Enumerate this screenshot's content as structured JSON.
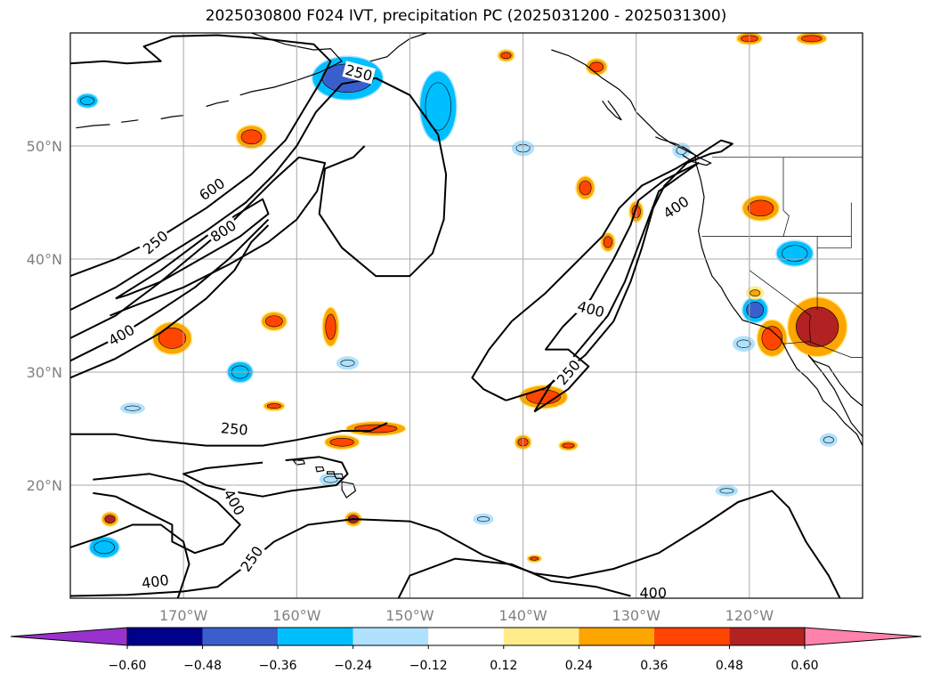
{
  "chart_data": {
    "type": "heatmap",
    "title": "2025030800 F024 IVT, precipitation PC (2025031200 - 2025031300)",
    "map": {
      "lon_range": [
        -180,
        -110
      ],
      "lat_range": [
        10,
        60
      ],
      "lat_ticks": [
        {
          "value": 50,
          "label": "50°N"
        },
        {
          "value": 40,
          "label": "40°N"
        },
        {
          "value": 30,
          "label": "30°N"
        },
        {
          "value": 20,
          "label": "20°N"
        }
      ],
      "lon_ticks": [
        {
          "value": -170,
          "label": "170°W"
        },
        {
          "value": -160,
          "label": "160°W"
        },
        {
          "value": -150,
          "label": "150°W"
        },
        {
          "value": -140,
          "label": "140°W"
        },
        {
          "value": -130,
          "label": "130°W"
        },
        {
          "value": -120,
          "label": "120°W"
        }
      ],
      "grid": true
    },
    "ivt_contours": {
      "levels": [
        250,
        400,
        600,
        800
      ],
      "labels": [
        {
          "text": "250",
          "lon": -172.5,
          "lat": 41.5,
          "rotate": -40
        },
        {
          "text": "400",
          "lon": -175.5,
          "lat": 33.3,
          "rotate": -30
        },
        {
          "text": "600",
          "lon": -167.5,
          "lat": 46.2,
          "rotate": -35
        },
        {
          "text": "800",
          "lon": -166.5,
          "lat": 42.5,
          "rotate": -33
        },
        {
          "text": "250",
          "lon": -154.5,
          "lat": 56.5,
          "rotate": 15
        },
        {
          "text": "250",
          "lon": -165.5,
          "lat": 25.0,
          "rotate": 5
        },
        {
          "text": "400",
          "lon": -165.5,
          "lat": 18.5,
          "rotate": 60
        },
        {
          "text": "250",
          "lon": -164.0,
          "lat": 13.5,
          "rotate": -55
        },
        {
          "text": "400",
          "lon": -172.5,
          "lat": 11.5,
          "rotate": -8
        },
        {
          "text": "400",
          "lon": -126.5,
          "lat": 44.6,
          "rotate": -35
        },
        {
          "text": "400",
          "lon": -134.0,
          "lat": 35.6,
          "rotate": 15
        },
        {
          "text": "250",
          "lon": -136.0,
          "lat": 30.0,
          "rotate": -50
        },
        {
          "text": "400",
          "lon": -128.5,
          "lat": 10.5,
          "rotate": 0
        }
      ]
    },
    "colorbar": {
      "boundaries": [
        "-0.60",
        "-0.48",
        "-0.36",
        "-0.24",
        "-0.12",
        "0.12",
        "0.24",
        "0.36",
        "0.48",
        "0.60"
      ],
      "colors": [
        "#9932CC",
        "#00008B",
        "#3A5FCD",
        "#00BFFF",
        "#B0E2FF",
        "#FFFFFF",
        "#FFEC8B",
        "#FFA500",
        "#FF4500",
        "#B22222",
        "#FF82AB"
      ],
      "extend": "both"
    },
    "precip_pc_regions": [
      {
        "lon": -155.5,
        "lat": 56.0,
        "rx": 3.0,
        "ry": 1.8,
        "value": -0.42
      },
      {
        "lon": -147.5,
        "lat": 53.5,
        "rx": 1.5,
        "ry": 3.0,
        "value": -0.36
      },
      {
        "lon": -164.0,
        "lat": 50.8,
        "rx": 1.2,
        "ry": 0.9,
        "value": 0.4
      },
      {
        "lon": -171.0,
        "lat": 33.0,
        "rx": 1.6,
        "ry": 1.3,
        "value": 0.42
      },
      {
        "lon": -162.0,
        "lat": 34.5,
        "rx": 1.0,
        "ry": 0.7,
        "value": 0.36
      },
      {
        "lon": -157.0,
        "lat": 34.0,
        "rx": 0.6,
        "ry": 1.6,
        "value": 0.36
      },
      {
        "lon": -138.2,
        "lat": 27.8,
        "rx": 2.0,
        "ry": 0.9,
        "value": 0.36
      },
      {
        "lon": -153.0,
        "lat": 25.0,
        "rx": 2.5,
        "ry": 0.5,
        "value": 0.36
      },
      {
        "lon": -156.0,
        "lat": 23.8,
        "rx": 1.4,
        "ry": 0.5,
        "value": 0.36
      },
      {
        "lon": -134.5,
        "lat": 46.3,
        "rx": 0.7,
        "ry": 0.9,
        "value": 0.36
      },
      {
        "lon": -130.0,
        "lat": 44.2,
        "rx": 0.5,
        "ry": 0.8,
        "value": 0.36
      },
      {
        "lon": -133.5,
        "lat": 57.0,
        "rx": 0.8,
        "ry": 0.6,
        "value": 0.36
      },
      {
        "lon": -119.0,
        "lat": 44.5,
        "rx": 1.5,
        "ry": 1.0,
        "value": 0.36
      },
      {
        "lon": -114.0,
        "lat": 34.0,
        "rx": 2.5,
        "ry": 2.5,
        "value": 0.48
      },
      {
        "lon": -118.0,
        "lat": 33.0,
        "rx": 1.2,
        "ry": 1.5,
        "value": 0.36
      },
      {
        "lon": -119.5,
        "lat": 35.5,
        "rx": 1.0,
        "ry": 1.0,
        "value": -0.48
      },
      {
        "lon": -116.0,
        "lat": 40.5,
        "rx": 1.5,
        "ry": 1.0,
        "value": -0.36
      },
      {
        "lon": -165.0,
        "lat": 30.0,
        "rx": 1.0,
        "ry": 0.8,
        "value": -0.36
      },
      {
        "lon": -177.0,
        "lat": 14.5,
        "rx": 1.2,
        "ry": 0.8,
        "value": -0.36
      },
      {
        "lon": -178.5,
        "lat": 54.0,
        "rx": 0.8,
        "ry": 0.5,
        "value": -0.36
      },
      {
        "lon": -140.0,
        "lat": 49.8,
        "rx": 0.8,
        "ry": 0.5,
        "value": -0.24
      },
      {
        "lon": -126.0,
        "lat": 49.6,
        "rx": 0.6,
        "ry": 0.5,
        "value": -0.24
      },
      {
        "lon": -155.5,
        "lat": 30.8,
        "rx": 0.8,
        "ry": 0.4,
        "value": -0.24
      },
      {
        "lon": -174.5,
        "lat": 26.8,
        "rx": 0.9,
        "ry": 0.3,
        "value": -0.24
      },
      {
        "lon": -157.0,
        "lat": 20.5,
        "rx": 0.8,
        "ry": 0.4,
        "value": -0.24
      },
      {
        "lon": -143.5,
        "lat": 17.0,
        "rx": 0.7,
        "ry": 0.3,
        "value": -0.24
      },
      {
        "lon": -122.0,
        "lat": 19.5,
        "rx": 0.8,
        "ry": 0.3,
        "value": -0.24
      },
      {
        "lon": -141.5,
        "lat": 58.0,
        "rx": 0.6,
        "ry": 0.4,
        "value": 0.36
      },
      {
        "lon": -155.0,
        "lat": 17.0,
        "rx": 0.6,
        "ry": 0.5,
        "value": 0.48
      },
      {
        "lon": -176.5,
        "lat": 17.0,
        "rx": 0.6,
        "ry": 0.5,
        "value": 0.48
      },
      {
        "lon": -162.0,
        "lat": 27.0,
        "rx": 0.8,
        "ry": 0.3,
        "value": 0.36
      },
      {
        "lon": -140.0,
        "lat": 23.8,
        "rx": 0.6,
        "ry": 0.5,
        "value": 0.36
      },
      {
        "lon": -136.0,
        "lat": 23.5,
        "rx": 0.7,
        "ry": 0.3,
        "value": 0.36
      },
      {
        "lon": -113.0,
        "lat": 24.0,
        "rx": 0.6,
        "ry": 0.4,
        "value": -0.24
      },
      {
        "lon": -120.5,
        "lat": 32.5,
        "rx": 0.8,
        "ry": 0.5,
        "value": -0.24
      },
      {
        "lon": -132.5,
        "lat": 41.5,
        "rx": 0.5,
        "ry": 0.7,
        "value": 0.36
      },
      {
        "lon": -114.5,
        "lat": 59.5,
        "rx": 1.2,
        "ry": 0.4,
        "value": 0.36
      },
      {
        "lon": -120.0,
        "lat": 59.5,
        "rx": 1.0,
        "ry": 0.4,
        "value": 0.36
      },
      {
        "lon": -119.5,
        "lat": 37.0,
        "rx": 0.6,
        "ry": 0.4,
        "value": 0.24
      },
      {
        "lon": -139.0,
        "lat": 13.5,
        "rx": 0.5,
        "ry": 0.2,
        "value": 0.36
      }
    ]
  }
}
